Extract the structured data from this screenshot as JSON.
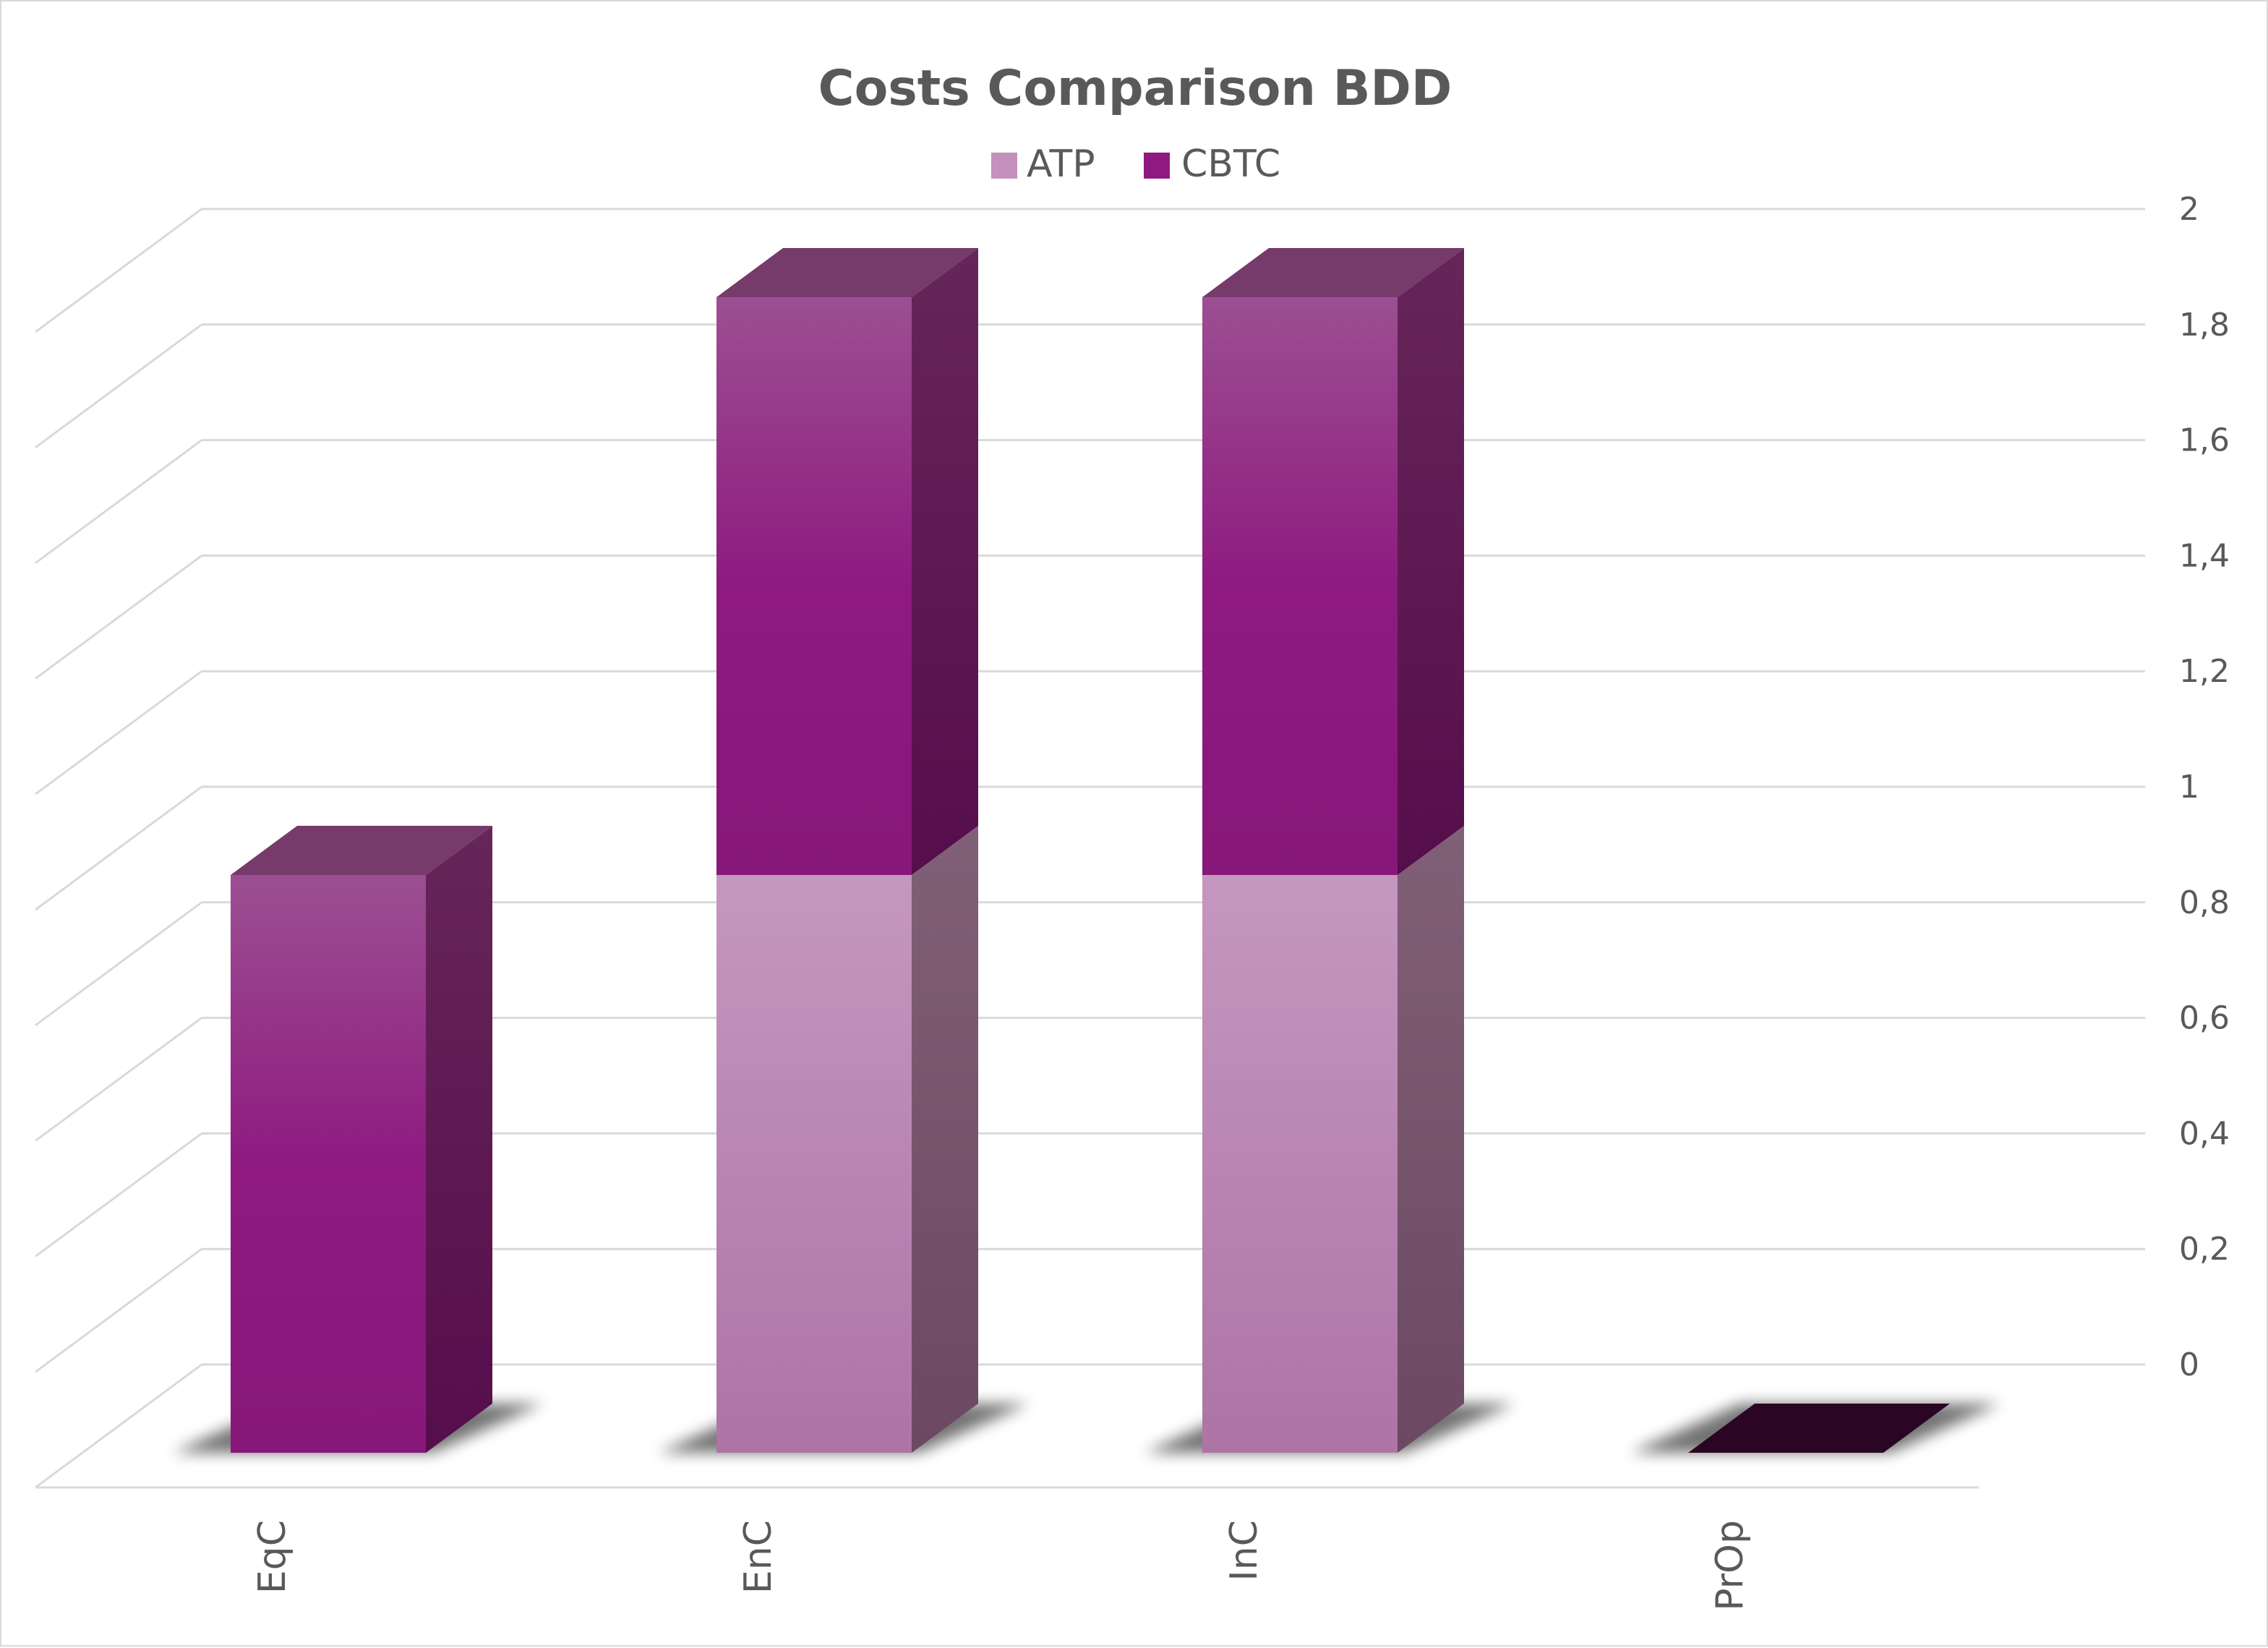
{
  "chart_data": {
    "type": "bar",
    "stacked": true,
    "three_d": true,
    "title": "Costs Comparison BDD",
    "categories": [
      "EqC",
      "EnC",
      "InC",
      "PrOp"
    ],
    "series": [
      {
        "name": "ATP",
        "values": [
          0,
          1,
          1,
          0
        ],
        "color": "#c490bd"
      },
      {
        "name": "CBTC",
        "values": [
          1,
          1,
          1,
          0
        ],
        "color": "#8e1a80"
      }
    ],
    "ylim": [
      0,
      2
    ],
    "yticks": [
      "0",
      "0,2",
      "0,4",
      "0,6",
      "0,8",
      "1",
      "1,2",
      "1,4",
      "1,6",
      "1,8",
      "2"
    ],
    "y_axis_side": "right",
    "legend": "top",
    "grid": true,
    "xlabel": "",
    "ylabel": ""
  }
}
